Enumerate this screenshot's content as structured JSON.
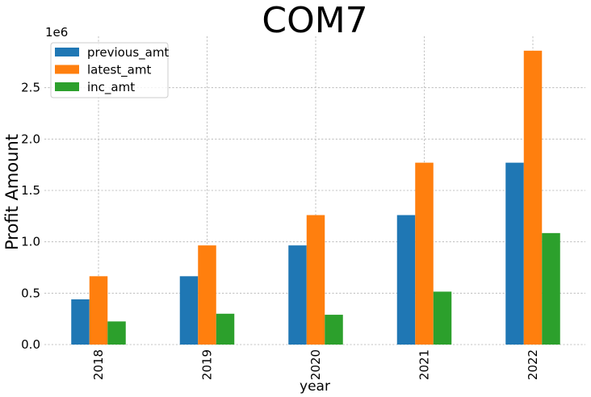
{
  "chart_data": {
    "type": "bar",
    "title": "COM7",
    "xlabel": "year",
    "ylabel": "Profit Amount",
    "y_offset_label": "1e6",
    "categories": [
      "2018",
      "2019",
      "2020",
      "2021",
      "2022"
    ],
    "series": [
      {
        "name": "previous_amt",
        "color": "#1f77b4",
        "values": [
          440000,
          665000,
          965000,
          1260000,
          1770000
        ]
      },
      {
        "name": "latest_amt",
        "color": "#ff7f0e",
        "values": [
          665000,
          965000,
          1260000,
          1770000,
          2860000
        ]
      },
      {
        "name": "inc_amt",
        "color": "#2ca02c",
        "values": [
          225000,
          300000,
          290000,
          515000,
          1085000
        ]
      }
    ],
    "ylim": [
      0,
      3000000
    ],
    "yticks": [
      0,
      500000,
      1000000,
      1500000,
      2000000,
      2500000
    ],
    "ytick_labels": [
      "0.0",
      "0.5",
      "1.0",
      "1.5",
      "2.0",
      "2.5"
    ],
    "grid": true,
    "legend_position": "top-left"
  }
}
